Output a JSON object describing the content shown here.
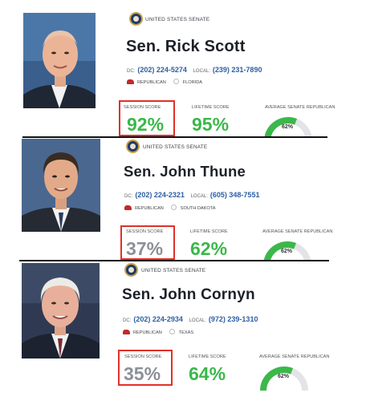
{
  "org_label": "UNITED STATES SENATE",
  "dc_label": "DC:",
  "local_label": "LOCAL:",
  "score_labels": {
    "session": "SESSION SCORE",
    "lifetime": "LIFETIME SCORE",
    "average": "AVERAGE SENATE REPUBLICAN"
  },
  "colors": {
    "green": "#3bb84a",
    "gray": "#8c9097",
    "highlight": "#e2302a",
    "phone": "#2d5fa3",
    "party": "#c4282b"
  },
  "senators": [
    {
      "name": "Sen. Rick Scott",
      "dc_phone": "(202) 224-5274",
      "local_phone": "(239) 231-7890",
      "party": "REPUBLICAN",
      "state": "FLORIDA",
      "session_score": "92%",
      "lifetime_score": "95%",
      "average_score": "62%",
      "average_fraction": 0.62,
      "session_color": "green",
      "photo": "portrait-photo"
    },
    {
      "name": "Sen. John Thune",
      "dc_phone": "(202) 224-2321",
      "local_phone": "(605) 348-7551",
      "party": "REPUBLICAN",
      "state": "SOUTH DAKOTA",
      "session_score": "37%",
      "lifetime_score": "62%",
      "average_score": "62%",
      "average_fraction": 0.62,
      "session_color": "gray",
      "photo": "portrait-photo"
    },
    {
      "name": "Sen. John Cornyn",
      "dc_phone": "(202) 224-2934",
      "local_phone": "(972) 239-1310",
      "party": "REPUBLICAN",
      "state": "TEXAS",
      "session_score": "35%",
      "lifetime_score": "64%",
      "average_score": "62%",
      "average_fraction": 0.62,
      "session_color": "gray",
      "photo": "portrait-photo"
    }
  ]
}
